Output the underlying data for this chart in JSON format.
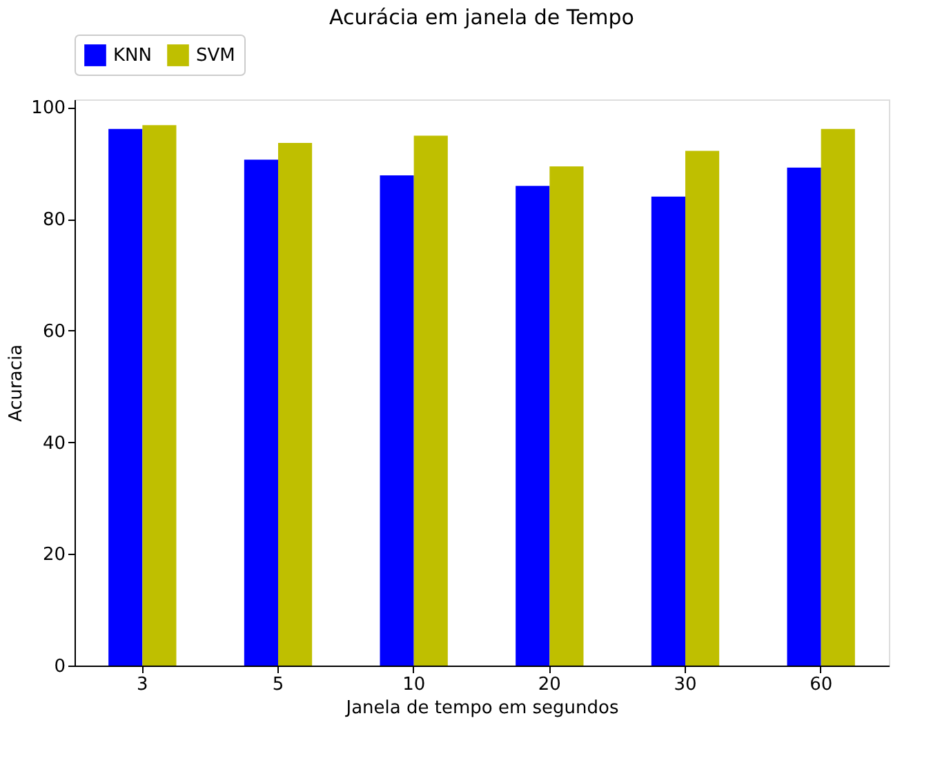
{
  "chart_data": {
    "type": "bar",
    "title": "Acurácia em janela de Tempo",
    "xlabel": "Janela de tempo em segundos",
    "ylabel": "Acuracia",
    "categories": [
      "3",
      "5",
      "10",
      "20",
      "30",
      "60"
    ],
    "series": [
      {
        "name": "KNN",
        "color": "#0000ff",
        "values": [
          96.1,
          90.6,
          87.8,
          85.9,
          84.0,
          89.2
        ]
      },
      {
        "name": "SVM",
        "color": "#bfbf00",
        "values": [
          96.8,
          93.6,
          94.9,
          89.4,
          92.2,
          96.1
        ]
      }
    ],
    "ylim": [
      0,
      101.4
    ],
    "yticks": [
      0,
      20,
      40,
      60,
      80,
      100
    ],
    "grid": false,
    "legend": "top"
  }
}
